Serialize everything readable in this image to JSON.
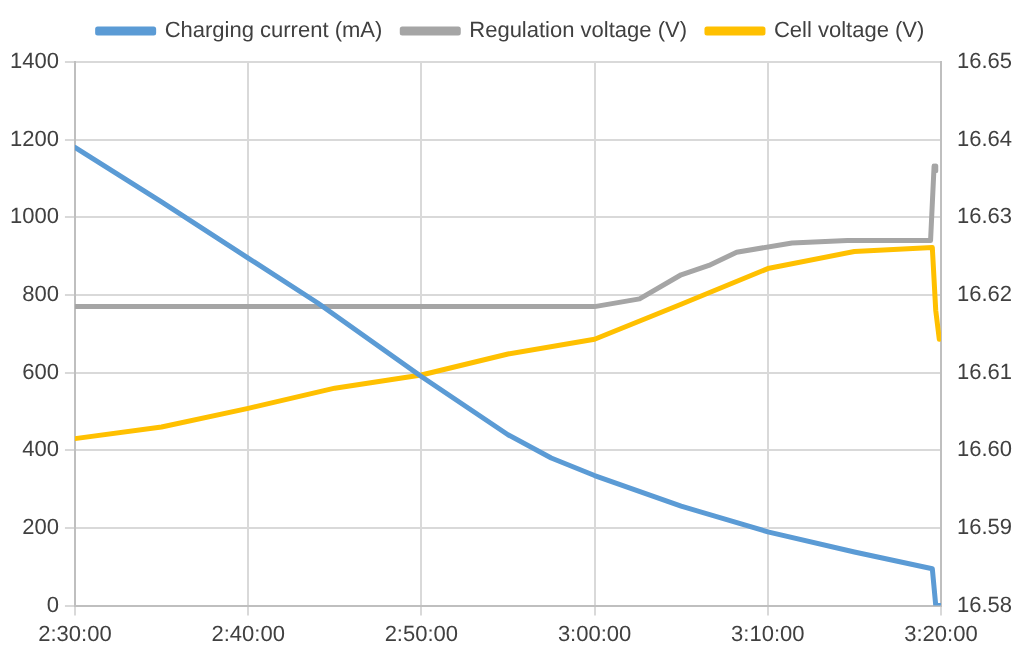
{
  "chart_data": {
    "type": "line",
    "xlim": [
      2.5,
      3.3333
    ],
    "xticks": [
      {
        "value": 2.5,
        "label": "2:30:00"
      },
      {
        "value": 2.6667,
        "label": "2:40:00"
      },
      {
        "value": 2.8333,
        "label": "2:50:00"
      },
      {
        "value": 3,
        "label": "3:00:00"
      },
      {
        "value": 3.1667,
        "label": "3:10:00"
      },
      {
        "value": 3.3333,
        "label": "3:20:00"
      }
    ],
    "ylim": [
      0,
      1400
    ],
    "yticks": [
      0,
      200,
      400,
      600,
      800,
      1000,
      1200,
      1400
    ],
    "y2lim": [
      16.58,
      16.65
    ],
    "y2ticks": [
      16.58,
      16.59,
      {
        "value": 16.6,
        "label": "16.60"
      },
      16.61,
      16.62,
      16.63,
      16.64,
      16.65
    ],
    "grid": true,
    "legend": "top",
    "marker": "none",
    "line_style": "solid",
    "series": [
      {
        "name": "Charging current (mA)",
        "color": "#5b9bd5",
        "x": [
          2.5,
          2.5833,
          2.6667,
          2.7333,
          2.8333,
          2.9167,
          2.9583,
          3.0,
          3.0833,
          3.1667,
          3.25,
          3.325,
          3.3283,
          3.3333
        ],
        "values": [
          1180,
          1040,
          895,
          780,
          590,
          440,
          380,
          335,
          256,
          190,
          138,
          95,
          0,
          0
        ]
      },
      {
        "name": "Regulation voltage (V)",
        "color": "#a5a5a5",
        "axis": "y2",
        "x": [
          2.5,
          2.6667,
          2.8333,
          3.0,
          3.0433,
          3.0833,
          3.11,
          3.1367,
          3.19,
          3.2433,
          3.3233,
          3.3267,
          3.3283
        ],
        "values": [
          16.6185,
          16.6185,
          16.6185,
          16.6185,
          16.6195,
          16.6226,
          16.6238,
          16.6255,
          16.6267,
          16.627,
          16.627,
          16.6366,
          16.636
        ]
      },
      {
        "name": "Cell voltage (V)",
        "color": "#ffc000",
        "axis": "y2",
        "x": [
          2.5,
          2.5833,
          2.6667,
          2.75,
          2.8333,
          2.9167,
          3.0,
          3.0833,
          3.1667,
          3.25,
          3.325,
          3.3283,
          3.3317
        ],
        "values": [
          16.6015,
          16.603,
          16.6054,
          16.608,
          16.6097,
          16.6124,
          16.6143,
          16.6188,
          16.6234,
          16.6256,
          16.6261,
          16.618,
          16.6143
        ]
      }
    ]
  }
}
